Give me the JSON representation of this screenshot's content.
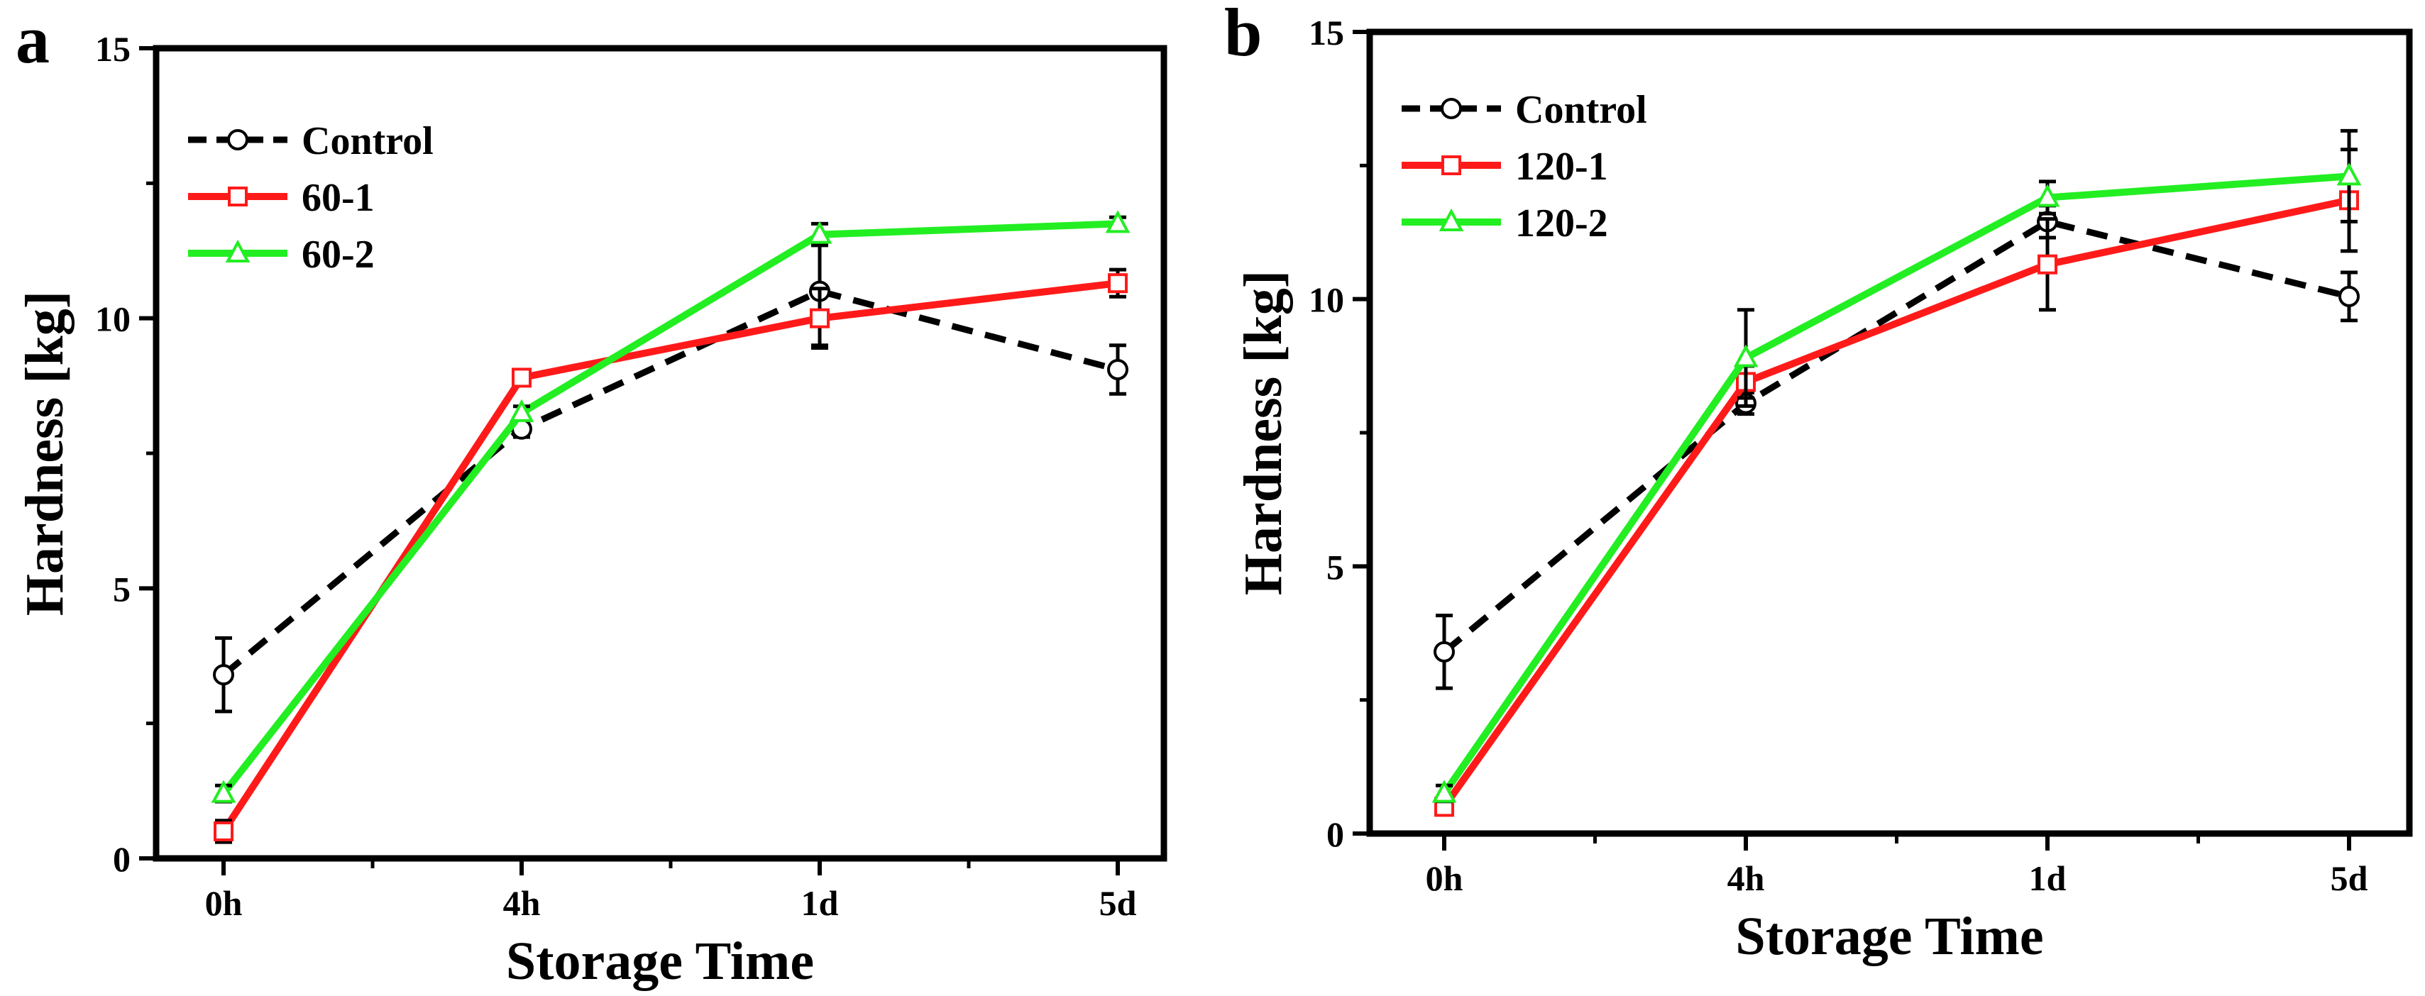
{
  "chart_data": [
    {
      "panel_label": "a",
      "type": "line",
      "categories": [
        "0h",
        "4h",
        "1d",
        "5d"
      ],
      "xlabel": "Storage Time",
      "ylabel": "Hardness [kg]",
      "ylim": [
        0,
        15
      ],
      "yticks": [
        0,
        5,
        10,
        15
      ],
      "legend_position": "top-left",
      "series": [
        {
          "name": "Control",
          "color": "#000000",
          "dashed": true,
          "marker": "circle",
          "values": [
            3.4,
            7.95,
            10.5,
            9.05
          ],
          "errors": [
            0.68,
            0.15,
            1.0,
            0.45
          ]
        },
        {
          "name": "60-1",
          "color": "#ff1a1a",
          "dashed": false,
          "marker": "square",
          "values": [
            0.5,
            8.9,
            10.0,
            10.65
          ],
          "errors": [
            0.2,
            0.1,
            0.55,
            0.25
          ]
        },
        {
          "name": "60-2",
          "color": "#22ee22",
          "dashed": false,
          "marker": "triangle",
          "values": [
            1.2,
            8.25,
            11.55,
            11.75
          ],
          "errors": [
            0.15,
            0.12,
            0.2,
            0.12
          ]
        }
      ]
    },
    {
      "panel_label": "b",
      "type": "line",
      "categories": [
        "0h",
        "4h",
        "1d",
        "5d"
      ],
      "xlabel": "Storage Time",
      "ylabel": "Hardness [kg]",
      "ylim": [
        0,
        15
      ],
      "yticks": [
        0,
        5,
        10,
        15
      ],
      "legend_position": "top-left",
      "series": [
        {
          "name": "Control",
          "color": "#000000",
          "dashed": true,
          "marker": "circle",
          "values": [
            3.4,
            8.05,
            11.45,
            10.05
          ],
          "errors": [
            0.68,
            0.2,
            0.3,
            0.45
          ]
        },
        {
          "name": "120-1",
          "color": "#ff1a1a",
          "dashed": false,
          "marker": "square",
          "values": [
            0.5,
            8.45,
            10.65,
            11.85
          ],
          "errors": [
            0.15,
            0.3,
            0.85,
            0.95
          ]
        },
        {
          "name": "120-2",
          "color": "#22ee22",
          "dashed": false,
          "marker": "triangle",
          "values": [
            0.75,
            8.9,
            11.9,
            12.3
          ],
          "errors": [
            0.15,
            0.9,
            0.3,
            0.85
          ]
        }
      ]
    }
  ]
}
